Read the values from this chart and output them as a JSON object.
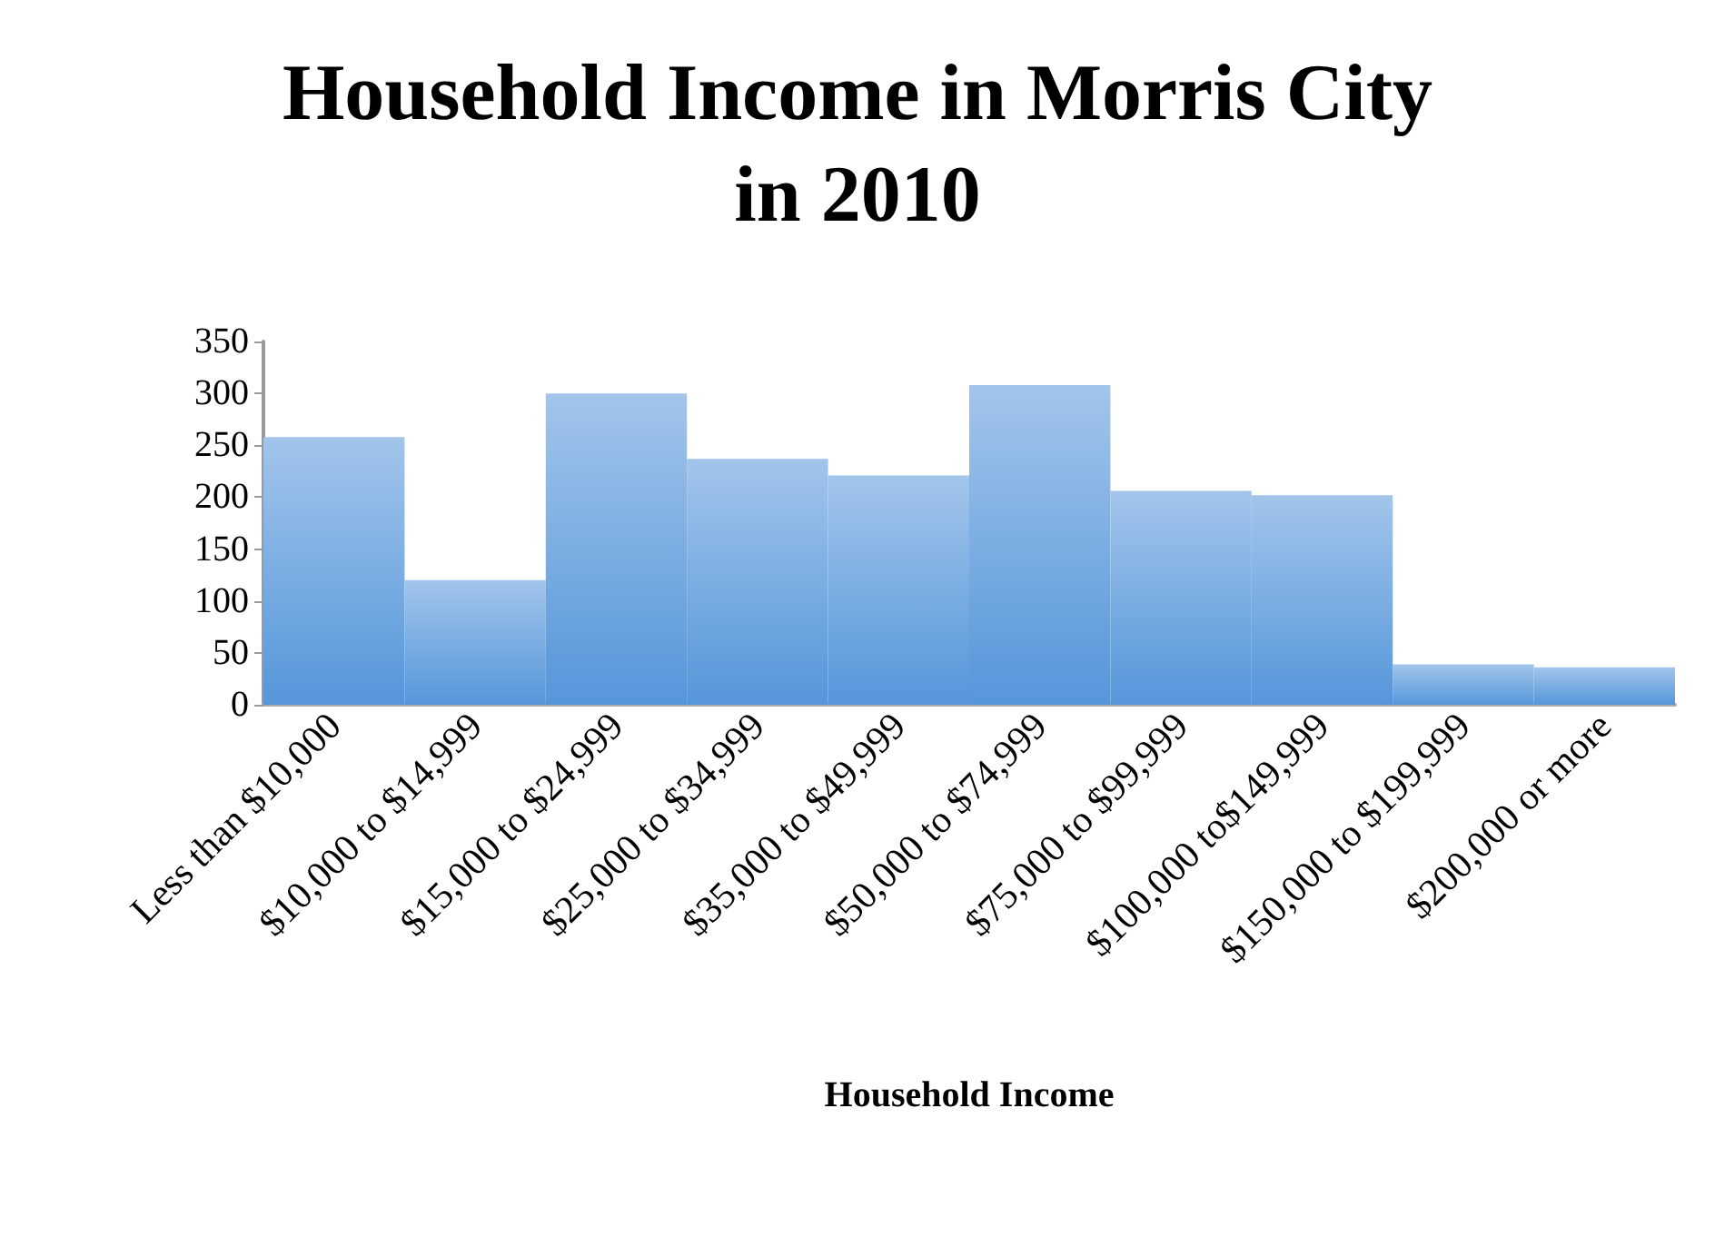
{
  "chart_data": {
    "type": "bar",
    "title": "Household Income in Morris City in 2010",
    "xlabel": "Household Income",
    "categories": [
      "Less than $10,000",
      "$10,000 to $14,999",
      "$15,000 to $24,999",
      "$25,000 to $34,999",
      "$35,000 to $49,999",
      "$50,000 to $74,999",
      "$75,000 to $99,999",
      "$100,000 to$149,999",
      "$150,000 to $199,999",
      "$200,000 or more"
    ],
    "values": [
      258,
      120,
      300,
      237,
      221,
      308,
      206,
      202,
      39,
      36
    ],
    "color": "#5596da",
    "ylim": [
      0,
      350
    ],
    "yticks": [
      0,
      50,
      100,
      150,
      200,
      250,
      300,
      350
    ],
    "grid": false
  }
}
